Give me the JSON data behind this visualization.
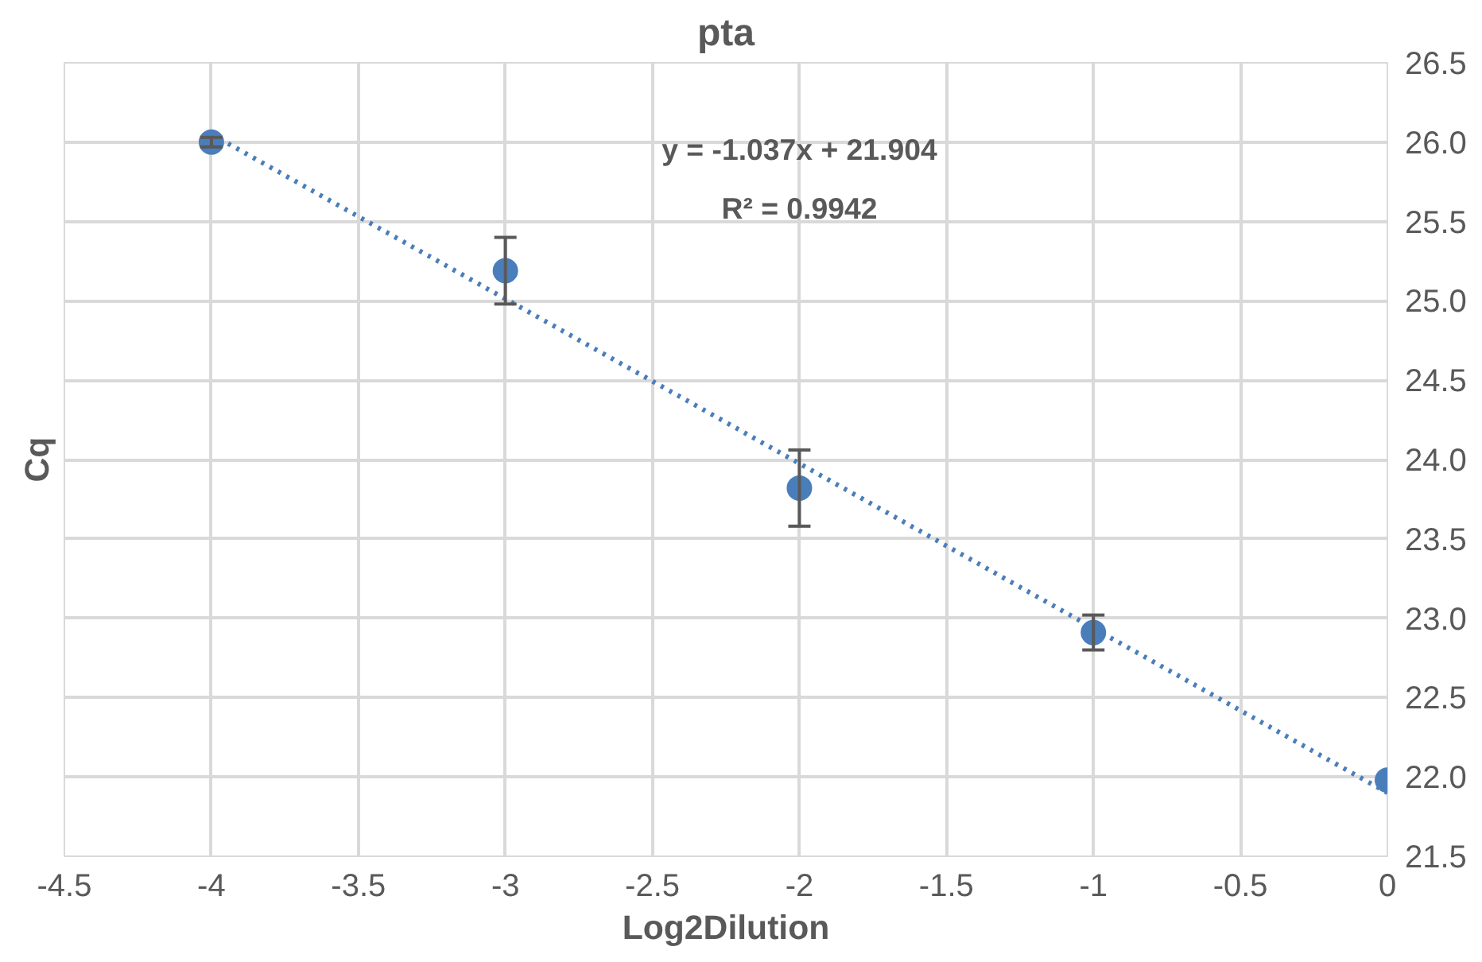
{
  "chart_data": {
    "type": "scatter",
    "title": "pta",
    "xlabel": "Log2Dilution",
    "ylabel": "Cq",
    "x": [
      -4,
      -3,
      -2,
      -1,
      0
    ],
    "series": [
      {
        "color": "#4a7ebb",
        "values": [
          26.0,
          25.19,
          23.82,
          22.91,
          21.98
        ],
        "errors": [
          0.03,
          0.21,
          0.24,
          0.11,
          null
        ],
        "marker": "circle"
      },
      {
        "type": "line",
        "color": "#4a7ebb",
        "x": [
          -4,
          0
        ],
        "values": [
          26.05,
          21.9
        ],
        "line_style": "dotted",
        "marker": "none"
      }
    ],
    "annotations": [
      "y = -1.037x + 21.904",
      "R² = 0.9942"
    ],
    "xlim": [
      -4.5,
      0
    ],
    "xticks": [
      -4.5,
      -4,
      -3.5,
      -3,
      -2.5,
      -2,
      -1.5,
      -1,
      -0.5,
      0
    ],
    "ylim": [
      21.5,
      26.5
    ],
    "yticks": [
      {
        "value": 21.5,
        "label": "21.5"
      },
      {
        "value": 22,
        "label": "22.0"
      },
      {
        "value": 22.5,
        "label": "22.5"
      },
      {
        "value": 23,
        "label": "23.0"
      },
      {
        "value": 23.5,
        "label": "23.5"
      },
      {
        "value": 24,
        "label": "24.0"
      },
      {
        "value": 24.5,
        "label": "24.5"
      },
      {
        "value": 25,
        "label": "25.0"
      },
      {
        "value": 25.5,
        "label": "25.5"
      },
      {
        "value": 26,
        "label": "26.0"
      },
      {
        "value": 26.5,
        "label": "26.5"
      }
    ],
    "grid": true
  }
}
